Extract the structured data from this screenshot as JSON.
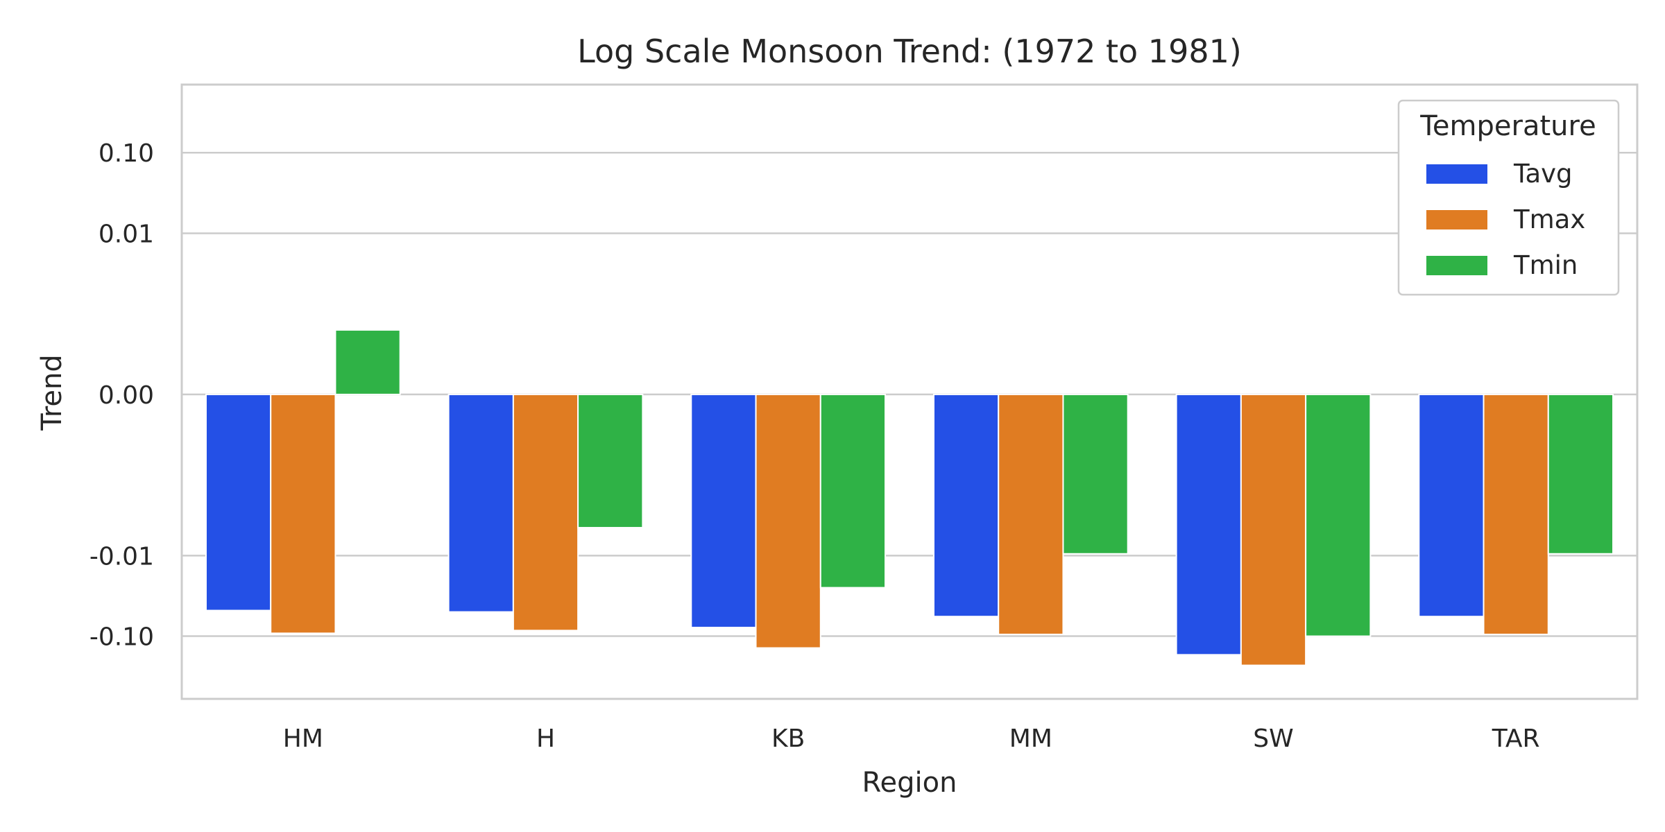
{
  "chart_data": {
    "type": "bar",
    "title": "Log Scale Monsoon Trend: (1972 to 1981)",
    "xlabel": "Region",
    "ylabel": "Trend",
    "categories": [
      "HM",
      "H",
      "KB",
      "MM",
      "SW",
      "TAR"
    ],
    "yscale": "symlog",
    "yticks": [
      {
        "value": 0.1,
        "label": "0.10"
      },
      {
        "value": 0.01,
        "label": "0.01"
      },
      {
        "value": 0.0,
        "label": "0.00"
      },
      {
        "value": -0.01,
        "label": "-0.01"
      },
      {
        "value": -0.1,
        "label": "-0.10"
      }
    ],
    "ylim": [
      -0.6,
      0.7
    ],
    "grid": true,
    "legend": {
      "title": "Temperature",
      "position": "top-right"
    },
    "series": [
      {
        "name": "Tavg",
        "color": "#2450e6",
        "values": [
          -0.048,
          -0.05,
          -0.078,
          -0.057,
          -0.17,
          -0.057
        ]
      },
      {
        "name": "Tmax",
        "color": "#e07c22",
        "values": [
          -0.092,
          -0.085,
          -0.14,
          -0.095,
          -0.23,
          -0.095
        ]
      },
      {
        "name": "Tmin",
        "color": "#2fb246",
        "values": [
          0.0008,
          -0.0045,
          -0.025,
          -0.0095,
          -0.1,
          -0.0095
        ]
      }
    ]
  }
}
